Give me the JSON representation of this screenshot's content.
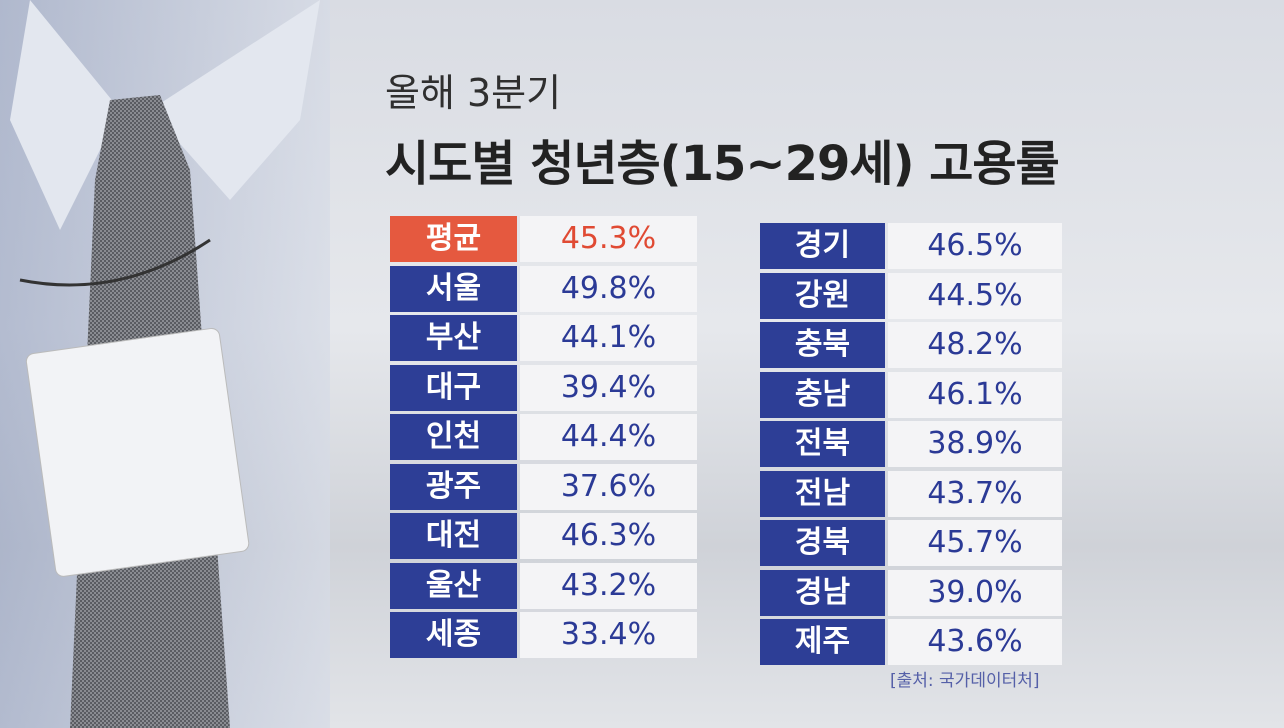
{
  "header": {
    "subtitle": "올해 3분기",
    "title": "시도별 청년층(15~29세) 고용률"
  },
  "table": {
    "left": [
      [
        "평균",
        "45.3%"
      ],
      [
        "서울",
        "49.8%"
      ],
      [
        "부산",
        "44.1%"
      ],
      [
        "대구",
        "39.4%"
      ],
      [
        "인천",
        "44.4%"
      ],
      [
        "광주",
        "37.6%"
      ],
      [
        "대전",
        "46.3%"
      ],
      [
        "울산",
        "43.2%"
      ],
      [
        "세종",
        "33.4%"
      ]
    ],
    "right": [
      [
        "경기",
        "46.5%"
      ],
      [
        "강원",
        "44.5%"
      ],
      [
        "충북",
        "48.2%"
      ],
      [
        "충남",
        "46.1%"
      ],
      [
        "전북",
        "38.9%"
      ],
      [
        "전남",
        "43.7%"
      ],
      [
        "경북",
        "45.7%"
      ],
      [
        "경남",
        "39.0%"
      ],
      [
        "제주",
        "43.6%"
      ]
    ]
  },
  "source": "[출처: 국가데이터처]"
}
